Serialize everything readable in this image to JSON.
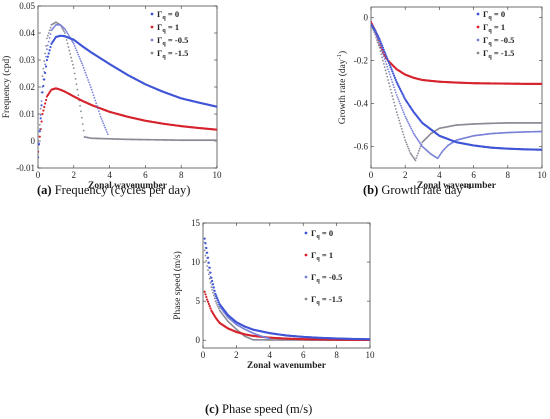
{
  "captions": [
    {
      "tag": "(a)",
      "text": "Frequency (cycles per day)"
    },
    {
      "tag": "(b)",
      "text": "Growth rate day",
      "sup": "−1"
    },
    {
      "tag": "(c)",
      "text": "Phase speed (m/s)"
    }
  ],
  "legend_symbol": "Γ",
  "legend_sub": "q",
  "colors": {
    "g0": "#4055d6",
    "g1": "#d6232c",
    "gm05": "#7a82d8",
    "gm15": "#8a8a96"
  },
  "chart_data": [
    {
      "type": "scatter",
      "title": "",
      "xlabel": "Zonal wavenumber",
      "ylabel": "Frequency (cpd)",
      "xlim": [
        0,
        10
      ],
      "ylim": [
        -0.01,
        0.05
      ],
      "xticks": [
        "0",
        "2",
        "4",
        "6",
        "8",
        "10"
      ],
      "yticks": [
        "-0.01",
        "0",
        "0.01",
        "0.02",
        "0.03",
        "0.04",
        "0.05"
      ],
      "legend_position": "top-right",
      "series": [
        {
          "name": "= 0",
          "color": "#4055d6",
          "x": [
            0,
            0.25,
            0.5,
            0.75,
            1,
            1.25,
            1.5,
            2,
            2.5,
            3,
            4,
            5,
            6,
            7,
            8,
            9,
            10
          ],
          "y": [
            -0.006,
            0.018,
            0.03,
            0.036,
            0.0385,
            0.039,
            0.0388,
            0.0375,
            0.035,
            0.0327,
            0.0285,
            0.0245,
            0.021,
            0.0182,
            0.0158,
            0.0142,
            0.0127
          ]
        },
        {
          "name": "= 1",
          "color": "#d6232c",
          "x": [
            0,
            0.25,
            0.5,
            0.75,
            1,
            1.25,
            1.5,
            2,
            2.5,
            3,
            4,
            5,
            6,
            7,
            8,
            9,
            10
          ],
          "y": [
            -0.004,
            0.01,
            0.0165,
            0.019,
            0.0195,
            0.019,
            0.0183,
            0.0165,
            0.0148,
            0.0133,
            0.0108,
            0.009,
            0.0075,
            0.0064,
            0.0055,
            0.0048,
            0.0042
          ]
        },
        {
          "name": "= -0.5",
          "color": "#7a82d8",
          "x": [
            0,
            0.25,
            0.5,
            0.75,
            1,
            1.25,
            1.5,
            2,
            2.5,
            3,
            3.5,
            3.9
          ],
          "y": [
            -0.006,
            0.02,
            0.034,
            0.041,
            0.043,
            0.043,
            0.0415,
            0.036,
            0.028,
            0.019,
            0.009,
            0.0025
          ]
        },
        {
          "name": "= -1.5",
          "color": "#8a8a96",
          "x": [
            0,
            0.25,
            0.5,
            0.75,
            1,
            1.25,
            1.5,
            2,
            2.4,
            2.6,
            3,
            4,
            5,
            6,
            7,
            8,
            9,
            10
          ],
          "y": [
            -0.006,
            0.024,
            0.038,
            0.043,
            0.044,
            0.043,
            0.04,
            0.027,
            0.011,
            0.0015,
            0.001,
            0.0008,
            0.0006,
            0.0005,
            0.0004,
            0.0003,
            0.0003,
            0.0003
          ]
        }
      ]
    },
    {
      "type": "scatter",
      "title": "",
      "xlabel": "Zonal wavenumber",
      "ylabel": "Growth rate (day",
      "ylabel_sup": "-1",
      "ylabel_close": ")",
      "xlim": [
        0,
        10
      ],
      "ylim": [
        -0.7,
        0.05
      ],
      "xticks": [
        "0",
        "2",
        "4",
        "6",
        "8",
        "10"
      ],
      "yticks": [
        "-0.6",
        "-0.4",
        "-0.2",
        "0"
      ],
      "legend_position": "top-right",
      "series": [
        {
          "name": "= 0",
          "color": "#4055d6",
          "x": [
            0,
            0.25,
            0.5,
            1,
            1.5,
            2,
            2.5,
            3,
            4,
            5,
            6,
            7,
            8,
            9,
            10
          ],
          "y": [
            -0.03,
            -0.06,
            -0.1,
            -0.2,
            -0.3,
            -0.38,
            -0.44,
            -0.49,
            -0.55,
            -0.58,
            -0.595,
            -0.605,
            -0.61,
            -0.613,
            -0.615
          ]
        },
        {
          "name": "= 1",
          "color": "#d6232c",
          "x": [
            0,
            0.25,
            0.5,
            0.75,
            1,
            1.5,
            2,
            2.5,
            3,
            4,
            5,
            6,
            7,
            8,
            9,
            10
          ],
          "y": [
            -0.02,
            -0.06,
            -0.12,
            -0.17,
            -0.2,
            -0.24,
            -0.265,
            -0.28,
            -0.29,
            -0.298,
            -0.302,
            -0.305,
            -0.306,
            -0.307,
            -0.308,
            -0.308
          ]
        },
        {
          "name": "= -0.5",
          "color": "#7a82d8",
          "x": [
            0,
            0.25,
            0.5,
            1,
            1.5,
            2,
            2.5,
            3,
            3.5,
            3.9,
            4.2,
            4.5,
            5,
            6,
            7,
            8,
            9,
            10
          ],
          "y": [
            -0.03,
            -0.07,
            -0.12,
            -0.24,
            -0.36,
            -0.46,
            -0.54,
            -0.6,
            -0.635,
            -0.655,
            -0.62,
            -0.595,
            -0.57,
            -0.55,
            -0.54,
            -0.535,
            -0.532,
            -0.53
          ]
        },
        {
          "name": "= -1.5",
          "color": "#8a8a96",
          "x": [
            0,
            0.25,
            0.5,
            1,
            1.5,
            2,
            2.3,
            2.6,
            2.8,
            3,
            3.5,
            4,
            5,
            6,
            7,
            8,
            9,
            10
          ],
          "y": [
            -0.03,
            -0.08,
            -0.14,
            -0.29,
            -0.44,
            -0.57,
            -0.63,
            -0.665,
            -0.62,
            -0.58,
            -0.54,
            -0.515,
            -0.5,
            -0.495,
            -0.492,
            -0.49,
            -0.49,
            -0.49
          ]
        }
      ]
    },
    {
      "type": "scatter",
      "title": "",
      "xlabel": "Zonal wavenumber",
      "ylabel": "Phase speed (m/s)",
      "xlim": [
        0,
        10
      ],
      "ylim": [
        -1,
        15
      ],
      "xticks": [
        "0",
        "2",
        "4",
        "6",
        "8",
        "10"
      ],
      "yticks": [
        "0",
        "5",
        "10",
        "15"
      ],
      "legend_position": "top-right",
      "series": [
        {
          "name": "= 0",
          "color": "#4055d6",
          "x": [
            0.1,
            0.25,
            0.5,
            0.75,
            1,
            1.5,
            2,
            2.5,
            3,
            4,
            5,
            6,
            7,
            8,
            9,
            10
          ],
          "y": [
            13,
            11.2,
            8,
            5.9,
            4.6,
            3.2,
            2.3,
            1.75,
            1.35,
            0.9,
            0.6,
            0.42,
            0.3,
            0.22,
            0.16,
            0.12
          ]
        },
        {
          "name": "= 1",
          "color": "#d6232c",
          "x": [
            0.1,
            0.25,
            0.5,
            0.75,
            1,
            1.5,
            2,
            2.5,
            3,
            4,
            5,
            6,
            7,
            8,
            9,
            10
          ],
          "y": [
            6.2,
            5.2,
            3.8,
            2.9,
            2.2,
            1.5,
            1.05,
            0.75,
            0.55,
            0.32,
            0.2,
            0.13,
            0.09,
            0.06,
            0.04,
            0.03
          ]
        },
        {
          "name": "= -0.5",
          "color": "#7a82d8",
          "x": [
            0.1,
            0.25,
            0.5,
            0.75,
            1,
            1.5,
            2,
            2.5,
            3,
            3.5,
            4
          ],
          "y": [
            12.5,
            10.5,
            7.5,
            5.6,
            4.3,
            2.9,
            2.0,
            1.4,
            0.9,
            0.5,
            0.2
          ]
        },
        {
          "name": "= -1.5",
          "color": "#8a8a96",
          "x": [
            0.1,
            0.25,
            0.5,
            0.75,
            1,
            1.5,
            2,
            2.5,
            3,
            4,
            5,
            6,
            7,
            8,
            9,
            10
          ],
          "y": [
            11.5,
            9.5,
            6.8,
            5.0,
            3.8,
            2.4,
            1.4,
            0.5,
            0.05,
            0.03,
            0.02,
            0.02,
            0.01,
            0.01,
            0.01,
            0.01
          ]
        }
      ]
    }
  ]
}
